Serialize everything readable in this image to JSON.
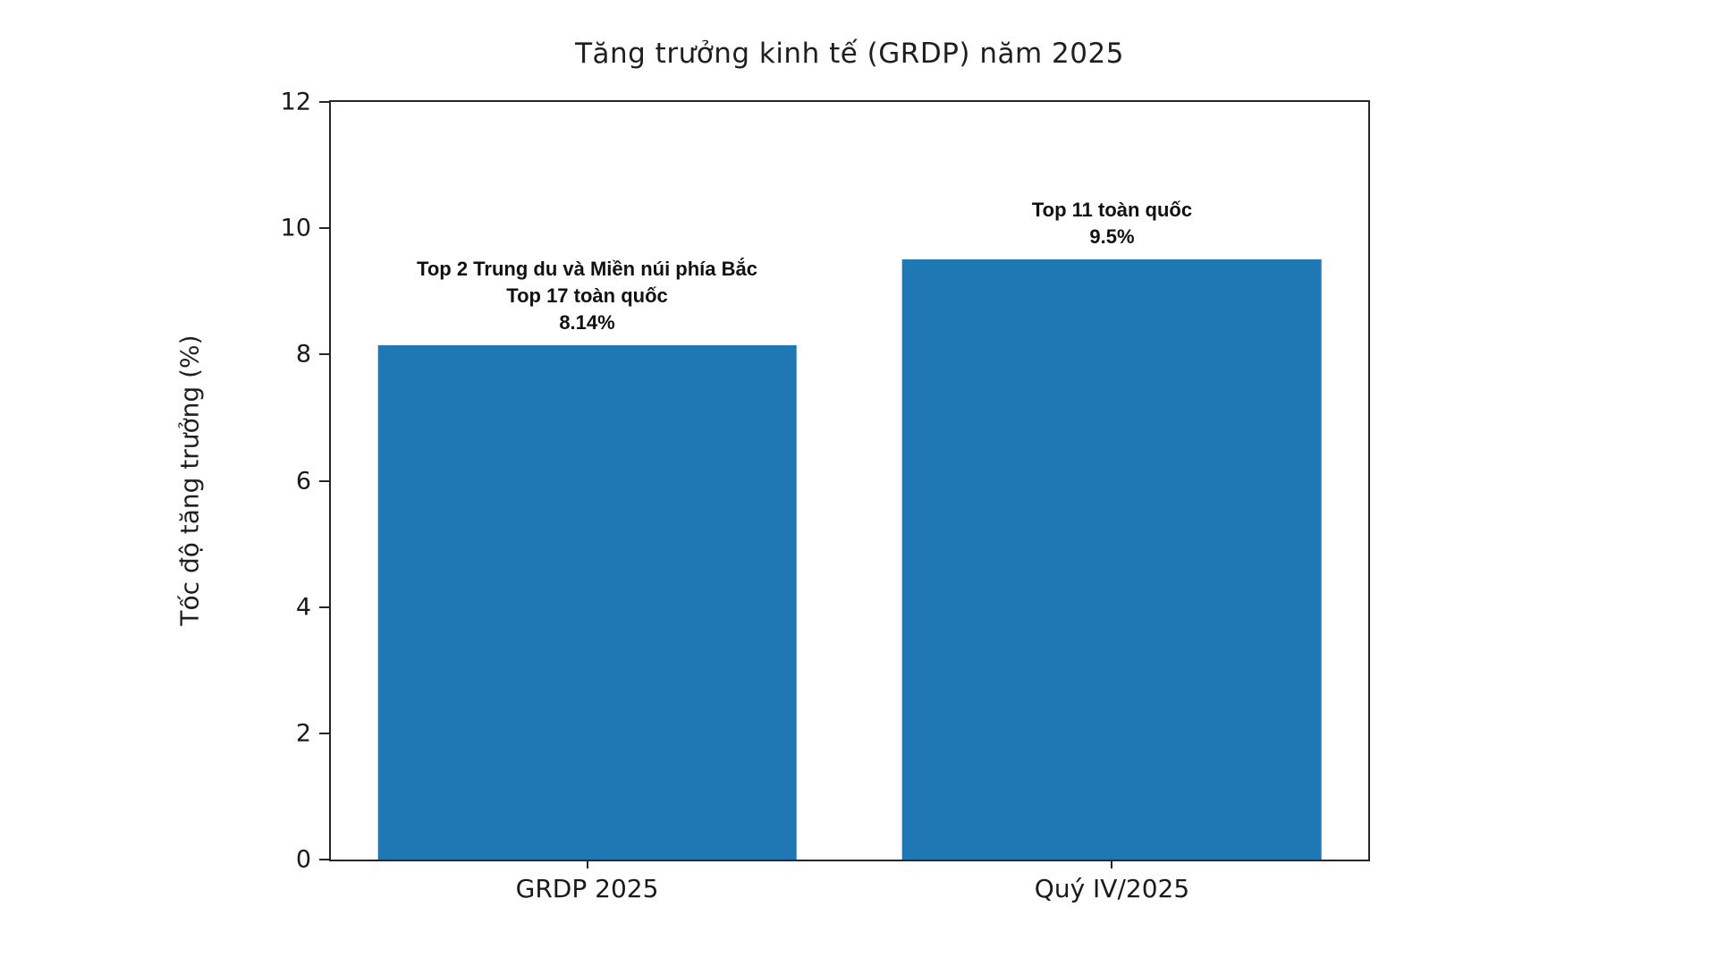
{
  "chart_data": {
    "type": "bar",
    "title": "Tăng trưởng kinh tế (GRDP) năm 2025",
    "ylabel": "Tốc độ tăng trưởng (%)",
    "xlabel": "",
    "categories": [
      "GRDP 2025",
      "Quý IV/2025"
    ],
    "values": [
      8.14,
      9.5
    ],
    "ylim": [
      0,
      12
    ],
    "yticks": [
      0,
      2,
      4,
      6,
      8,
      10,
      12
    ],
    "bar_color": "#1f77b4",
    "grid": false,
    "legend": null,
    "annotations": [
      {
        "target": "GRDP 2025",
        "lines": [
          "Top 2 Trung du và Miền núi phía Bắc",
          "Top 17 toàn quốc",
          "8.14%"
        ]
      },
      {
        "target": "Quý IV/2025",
        "lines": [
          "Top 11 toàn quốc",
          "9.5%"
        ]
      }
    ]
  }
}
